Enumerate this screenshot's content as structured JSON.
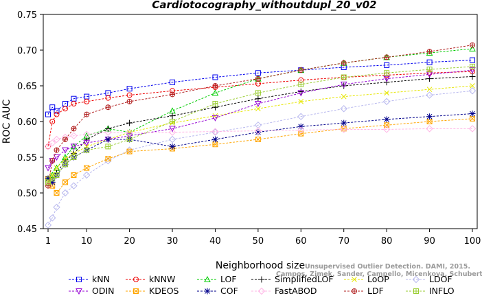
{
  "chart_data": {
    "type": "line",
    "title": "Cardiotocography_withoutdupl_20_v02",
    "xlabel": "Neighborhood size",
    "ylabel": "ROC AUC",
    "xlim": [
      1,
      100
    ],
    "ylim": [
      0.45,
      0.75
    ],
    "x_ticks": [
      "1",
      "10",
      "20",
      "30",
      "40",
      "50",
      "60",
      "70",
      "80",
      "90",
      "100"
    ],
    "y_ticks": [
      "0.45",
      "0.50",
      "0.55",
      "0.60",
      "0.65",
      "0.70",
      "0.75"
    ],
    "grid": false,
    "legend_position": "bottom",
    "x": [
      1,
      2,
      3,
      5,
      7,
      10,
      15,
      20,
      30,
      40,
      50,
      60,
      70,
      80,
      90,
      100
    ],
    "series": [
      {
        "name": "kNN",
        "color": "#0000ee",
        "marker": "square",
        "values": [
          0.61,
          0.62,
          0.615,
          0.625,
          0.632,
          0.635,
          0.64,
          0.646,
          0.655,
          0.662,
          0.668,
          0.672,
          0.676,
          0.679,
          0.683,
          0.686
        ]
      },
      {
        "name": "kNNW",
        "color": "#ee0000",
        "marker": "circle",
        "values": [
          0.565,
          0.6,
          0.61,
          0.618,
          0.625,
          0.628,
          0.633,
          0.637,
          0.643,
          0.648,
          0.653,
          0.658,
          0.662,
          0.665,
          0.668,
          0.67
        ]
      },
      {
        "name": "LOF",
        "color": "#00cc00",
        "marker": "triangle-up",
        "values": [
          0.52,
          0.525,
          0.535,
          0.55,
          0.565,
          0.58,
          0.59,
          0.585,
          0.615,
          0.64,
          0.66,
          0.672,
          0.682,
          0.69,
          0.696,
          0.702
        ]
      },
      {
        "name": "SimplifiedLOF",
        "color": "#000000",
        "marker": "plus",
        "values": [
          0.52,
          0.52,
          0.528,
          0.545,
          0.555,
          0.575,
          0.59,
          0.598,
          0.608,
          0.62,
          0.632,
          0.642,
          0.65,
          0.655,
          0.66,
          0.663
        ]
      },
      {
        "name": "LoOP",
        "color": "#e6e600",
        "marker": "x",
        "values": [
          0.52,
          0.525,
          0.535,
          0.548,
          0.555,
          0.565,
          0.575,
          0.585,
          0.598,
          0.608,
          0.618,
          0.628,
          0.635,
          0.64,
          0.645,
          0.65
        ]
      },
      {
        "name": "LDOF",
        "color": "#b8b8ee",
        "marker": "diamond",
        "values": [
          0.455,
          0.465,
          0.48,
          0.5,
          0.51,
          0.525,
          0.545,
          0.56,
          0.575,
          0.585,
          0.595,
          0.607,
          0.618,
          0.628,
          0.637,
          0.643
        ]
      },
      {
        "name": "ODIN",
        "color": "#9400d3",
        "marker": "triangle-down",
        "values": [
          0.535,
          0.545,
          0.55,
          0.56,
          0.565,
          0.57,
          0.575,
          0.58,
          0.59,
          0.605,
          0.625,
          0.64,
          0.652,
          0.66,
          0.666,
          0.672
        ]
      },
      {
        "name": "KDEOS",
        "color": "#ffa500",
        "marker": "square-x",
        "values": [
          0.52,
          0.51,
          0.5,
          0.515,
          0.525,
          0.535,
          0.548,
          0.558,
          0.562,
          0.568,
          0.575,
          0.583,
          0.59,
          0.595,
          0.6,
          0.604
        ]
      },
      {
        "name": "COF",
        "color": "#00008b",
        "marker": "asterisk",
        "values": [
          0.52,
          0.515,
          0.525,
          0.54,
          0.55,
          0.56,
          0.575,
          0.575,
          0.565,
          0.575,
          0.585,
          0.593,
          0.598,
          0.603,
          0.607,
          0.611
        ]
      },
      {
        "name": "FastABOD",
        "color": "#ffb6e6",
        "marker": "diamond",
        "values": [
          0.565,
          0.57,
          0.575,
          0.578,
          0.58,
          0.582,
          0.585,
          0.584,
          0.585,
          0.586,
          0.587,
          0.588,
          0.589,
          0.589,
          0.59,
          0.59
        ]
      },
      {
        "name": "LDF",
        "color": "#b22222",
        "marker": "circle-plus",
        "values": [
          0.51,
          0.545,
          0.56,
          0.575,
          0.59,
          0.61,
          0.62,
          0.628,
          0.638,
          0.65,
          0.66,
          0.672,
          0.682,
          0.69,
          0.698,
          0.707
        ]
      },
      {
        "name": "INFLO",
        "color": "#9acd32",
        "marker": "square-cross",
        "values": [
          0.515,
          0.52,
          0.525,
          0.54,
          0.55,
          0.56,
          0.565,
          0.575,
          0.6,
          0.625,
          0.64,
          0.652,
          0.662,
          0.668,
          0.673,
          0.677
        ]
      }
    ],
    "watermark": [
      "Unsupervised Outlier Detection. DAMI, 2015.",
      "Campos, Zimek, Sander, Campello, Micenkova, Schubert, Assent, Houle"
    ]
  }
}
